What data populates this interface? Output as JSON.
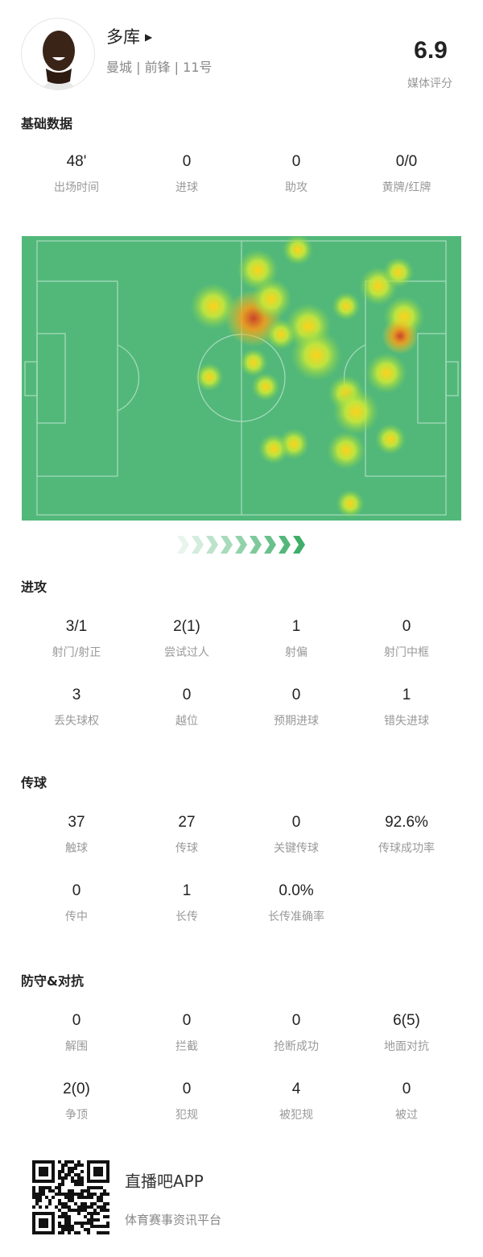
{
  "player": {
    "name": "多库",
    "team": "曼城",
    "position": "前锋",
    "number": "11号",
    "rating": "6.9",
    "rating_label": "媒体评分"
  },
  "sections": [
    {
      "title": "基础数据",
      "rows": [
        [
          {
            "v": "48'",
            "l": "出场时间"
          },
          {
            "v": "0",
            "l": "进球"
          },
          {
            "v": "0",
            "l": "助攻"
          },
          {
            "v": "0/0",
            "l": "黄牌/红牌"
          }
        ]
      ]
    },
    {
      "title": "进攻",
      "rows": [
        [
          {
            "v": "3/1",
            "l": "射门/射正"
          },
          {
            "v": "2(1)",
            "l": "尝试过人"
          },
          {
            "v": "1",
            "l": "射偏"
          },
          {
            "v": "0",
            "l": "射门中框"
          }
        ],
        [
          {
            "v": "3",
            "l": "丢失球权"
          },
          {
            "v": "0",
            "l": "越位"
          },
          {
            "v": "0",
            "l": "预期进球"
          },
          {
            "v": "1",
            "l": "错失进球"
          }
        ]
      ]
    },
    {
      "title": "传球",
      "rows": [
        [
          {
            "v": "37",
            "l": "触球"
          },
          {
            "v": "27",
            "l": "传球"
          },
          {
            "v": "0",
            "l": "关键传球"
          },
          {
            "v": "92.6%",
            "l": "传球成功率"
          }
        ],
        [
          {
            "v": "0",
            "l": "传中"
          },
          {
            "v": "1",
            "l": "长传"
          },
          {
            "v": "0.0%",
            "l": "长传准确率"
          }
        ]
      ]
    },
    {
      "title": "防守&对抗",
      "rows": [
        [
          {
            "v": "0",
            "l": "解围"
          },
          {
            "v": "0",
            "l": "拦截"
          },
          {
            "v": "0",
            "l": "抢断成功"
          },
          {
            "v": "6(5)",
            "l": "地面对抗"
          }
        ],
        [
          {
            "v": "2(0)",
            "l": "争顶"
          },
          {
            "v": "0",
            "l": "犯规"
          },
          {
            "v": "4",
            "l": "被犯规"
          },
          {
            "v": "0",
            "l": "被过"
          }
        ]
      ]
    }
  ],
  "footer": {
    "app": "直播吧APP",
    "slogan": "体育赛事资讯平台"
  },
  "colors": {
    "pitch": "#52b87a",
    "arrow": "#3fae6a"
  },
  "attack_direction": "right"
}
